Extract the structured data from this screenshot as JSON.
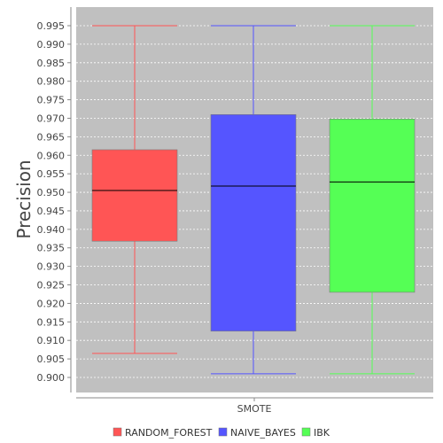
{
  "chart_data": {
    "type": "box",
    "ylabel": "Precision",
    "xlabel": "",
    "categories": [
      "SMOTE"
    ],
    "ylim": [
      0.898,
      0.997
    ],
    "yticks": [
      "0.900",
      "0.905",
      "0.910",
      "0.915",
      "0.920",
      "0.925",
      "0.930",
      "0.935",
      "0.940",
      "0.945",
      "0.950",
      "0.955",
      "0.960",
      "0.965",
      "0.970",
      "0.975",
      "0.980",
      "0.985",
      "0.990",
      "0.995"
    ],
    "grid": true,
    "legend_position": "bottom",
    "series": [
      {
        "name": "RANDOM_FOREST",
        "color": "#ff5555",
        "whisker_low": 0.9065,
        "q1": 0.9368,
        "median": 0.9505,
        "q3": 0.9615,
        "whisker_high": 0.995
      },
      {
        "name": "NAIVE_BAYES",
        "color": "#5555ff",
        "whisker_low": 0.901,
        "q1": 0.9125,
        "median": 0.9517,
        "q3": 0.971,
        "whisker_high": 0.995
      },
      {
        "name": "IBK",
        "color": "#55ff55",
        "whisker_low": 0.901,
        "q1": 0.923,
        "median": 0.9528,
        "q3": 0.9698,
        "whisker_high": 0.995
      }
    ]
  }
}
